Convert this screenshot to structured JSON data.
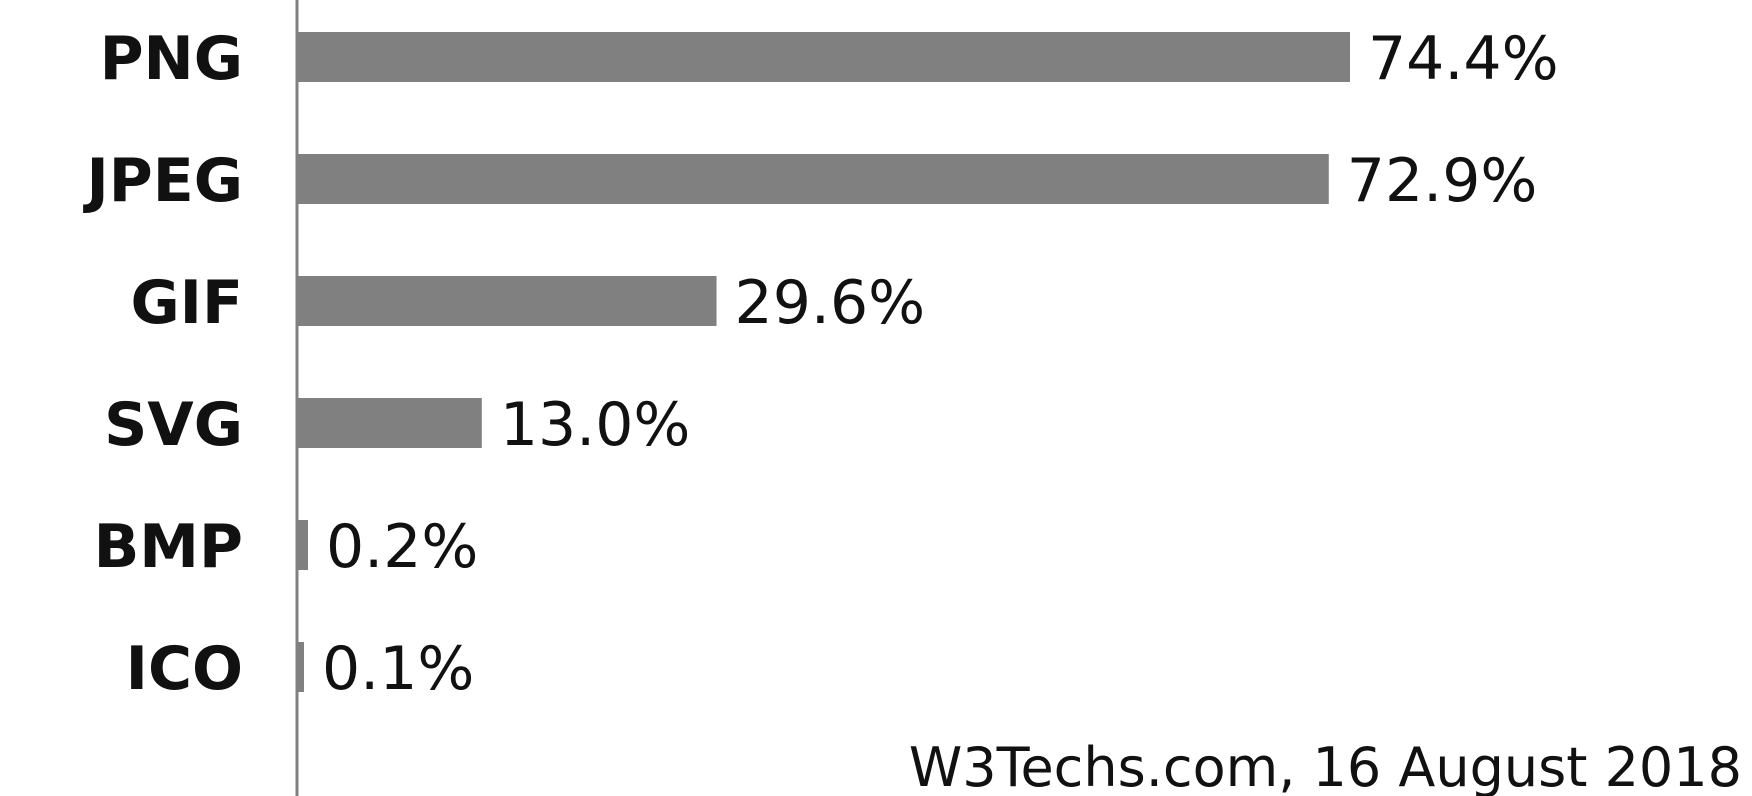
{
  "chart_data": {
    "type": "bar",
    "orientation": "horizontal",
    "categories": [
      "PNG",
      "JPEG",
      "GIF",
      "SVG",
      "BMP",
      "ICO"
    ],
    "values": [
      74.4,
      72.9,
      29.6,
      13.0,
      0.2,
      0.1
    ],
    "value_labels": [
      "74.4%",
      "72.9%",
      "29.6%",
      "13.0%",
      "0.2%",
      "0.1%"
    ],
    "unit": "%",
    "xlim": [
      0,
      100
    ],
    "grid": false,
    "legend": "none",
    "bar_color": "#808080",
    "axis_color": "#808080",
    "source": "W3Techs.com, 16 August 2018"
  }
}
